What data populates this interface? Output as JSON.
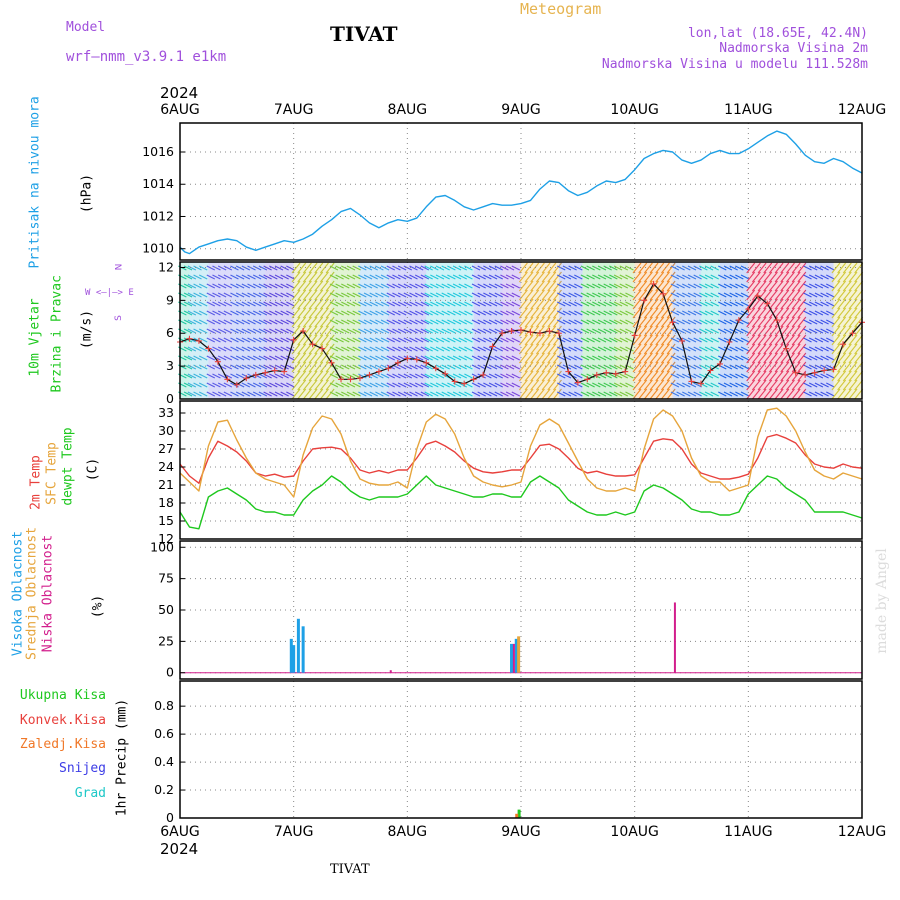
{
  "header": {
    "model_label": "Model",
    "model_name": "wrf—nmm_v3.9.1  e1km",
    "station": "TIVAT",
    "title": "Meteogram",
    "lonlat": "lon,lat (18.65E, 42.4N)",
    "altitude": "Nadmorska Visina 2m",
    "model_altitude": "Nadmorska Visina u modelu 111.528m",
    "year_top": "2024",
    "year_bottom": "2024",
    "footer_station": "TIVAT",
    "watermark": "made by Angel"
  },
  "colors": {
    "pressure": "#1ea0e6",
    "t2m": "#e8403c",
    "sfc": "#e6a53c",
    "dewpt": "#1ec81e",
    "visoka": "#1ea0e6",
    "srednja": "#e6a53c",
    "niska": "#d21e8c",
    "ukupna": "#1ec81e",
    "konvek": "#e8403c",
    "zaledj": "#f07828",
    "snijeg": "#3c3ce6",
    "grad": "#1ec8c8",
    "wind_label": "#1ec81e",
    "compass": "#a050dc",
    "watermark": "#dcdcdc"
  },
  "x_axis": {
    "dates": [
      "6AUG",
      "7AUG",
      "8AUG",
      "9AUG",
      "10AUG",
      "11AUG",
      "12AUG"
    ],
    "hours": [
      0,
      24,
      48,
      72,
      96,
      120,
      144
    ]
  },
  "panel_labels": {
    "pressure": {
      "name": "Pritisak na nivou mora",
      "unit": "(hPa)"
    },
    "wind": {
      "name1": "10m Vjetar",
      "name2": "Brzina i Pravac",
      "unit": "(m/s)"
    },
    "compass": {
      "n": "N",
      "w": "W",
      "e": "E",
      "s": "S",
      "row": "W  <—|—>  E"
    },
    "temp": {
      "t2m": "2m Temp",
      "sfc": "SFC Temp",
      "dewpt": "dewpt Temp",
      "unit": "(C)"
    },
    "cloud": {
      "visoka": "Visoka Oblacnost",
      "srednja": "Srednja Oblacnost",
      "niska": "Niska  Oblacnost",
      "unit": "(%)"
    },
    "precip": {
      "ukupna": "Ukupna  Kisa",
      "konvek": "Konvek.Kisa",
      "zaledj": "Zaledj.Kisa",
      "snijeg": "Snijeg",
      "grad": "Grad",
      "unit": "1hr Precip (mm)"
    }
  },
  "chart_data": [
    {
      "type": "line",
      "panel": "pressure",
      "ylim": [
        1009.3,
        1017.8
      ],
      "yticks": [
        1010,
        1012,
        1014,
        1016
      ],
      "series": [
        {
          "name": "Pritisak na nivou mora",
          "x": [
            0,
            1,
            2,
            4,
            6,
            8,
            10,
            12,
            14,
            16,
            18,
            20,
            22,
            24,
            26,
            28,
            30,
            32,
            34,
            36,
            38,
            40,
            42,
            44,
            46,
            48,
            50,
            52,
            54,
            56,
            58,
            60,
            62,
            64,
            66,
            68,
            70,
            72,
            74,
            76,
            78,
            80,
            82,
            84,
            86,
            88,
            90,
            92,
            94,
            96,
            98,
            100,
            102,
            104,
            106,
            108,
            110,
            112,
            114,
            116,
            118,
            120,
            122,
            124,
            126,
            128,
            130,
            132,
            134,
            136,
            138,
            140,
            142,
            144
          ],
          "values": [
            1010.1,
            1009.8,
            1009.7,
            1010.1,
            1010.3,
            1010.5,
            1010.6,
            1010.5,
            1010.1,
            1009.9,
            1010.1,
            1010.3,
            1010.5,
            1010.4,
            1010.6,
            1010.9,
            1011.4,
            1011.8,
            1012.3,
            1012.5,
            1012.1,
            1011.6,
            1011.3,
            1011.6,
            1011.8,
            1011.7,
            1011.9,
            1012.6,
            1013.2,
            1013.3,
            1013.0,
            1012.6,
            1012.4,
            1012.6,
            1012.8,
            1012.7,
            1012.7,
            1012.8,
            1013.0,
            1013.7,
            1014.2,
            1014.1,
            1013.6,
            1013.3,
            1013.5,
            1013.9,
            1014.2,
            1014.1,
            1014.3,
            1014.9,
            1015.6,
            1015.9,
            1016.1,
            1016.0,
            1015.5,
            1015.3,
            1015.5,
            1015.9,
            1016.1,
            1015.9,
            1015.9,
            1016.2,
            1016.6,
            1017.0,
            1017.3,
            1017.1,
            1016.5,
            1015.8,
            1015.4,
            1015.3,
            1015.6,
            1015.4,
            1015.0,
            1014.7
          ]
        }
      ]
    },
    {
      "type": "line",
      "panel": "wind",
      "ylim": [
        0,
        12.5
      ],
      "yticks": [
        0,
        3,
        6,
        9,
        12
      ],
      "series": [
        {
          "name": "10m Vjetar",
          "x": [
            0,
            2,
            4,
            6,
            8,
            10,
            12,
            14,
            16,
            18,
            20,
            22,
            24,
            26,
            28,
            30,
            32,
            34,
            36,
            38,
            40,
            42,
            44,
            46,
            48,
            50,
            52,
            54,
            56,
            58,
            60,
            62,
            64,
            66,
            68,
            70,
            72,
            74,
            76,
            78,
            80,
            82,
            84,
            86,
            88,
            90,
            92,
            94,
            96,
            98,
            100,
            102,
            104,
            106,
            108,
            110,
            112,
            114,
            116,
            118,
            120,
            122,
            124,
            126,
            128,
            130,
            132,
            134,
            136,
            138,
            140,
            142,
            144
          ],
          "values": [
            5.2,
            5.5,
            5.3,
            4.6,
            3.4,
            1.8,
            1.3,
            1.9,
            2.2,
            2.4,
            2.6,
            2.5,
            5.4,
            6.2,
            5.0,
            4.6,
            3.3,
            1.8,
            1.8,
            1.9,
            2.2,
            2.5,
            2.8,
            3.3,
            3.7,
            3.6,
            3.3,
            2.8,
            2.3,
            1.6,
            1.4,
            1.8,
            2.2,
            4.8,
            6.0,
            6.2,
            6.3,
            6.1,
            6.0,
            6.2,
            6.0,
            2.5,
            1.5,
            1.8,
            2.2,
            2.4,
            2.3,
            2.5,
            5.8,
            9.0,
            10.5,
            9.6,
            7.0,
            5.3,
            1.6,
            1.4,
            2.6,
            3.2,
            5.2,
            7.2,
            8.2,
            9.4,
            8.7,
            7.2,
            4.6,
            2.4,
            2.2,
            2.4,
            2.6,
            2.7,
            5.0,
            6.0,
            7.0
          ]
        }
      ]
    },
    {
      "type": "line",
      "panel": "temperature",
      "ylim": [
        12,
        35
      ],
      "yticks": [
        12,
        15,
        18,
        21,
        24,
        27,
        30,
        33
      ],
      "series": [
        {
          "name": "2m Temp",
          "x": [
            0,
            2,
            4,
            6,
            8,
            10,
            12,
            14,
            16,
            18,
            20,
            22,
            24,
            26,
            28,
            30,
            32,
            34,
            36,
            38,
            40,
            42,
            44,
            46,
            48,
            50,
            52,
            54,
            56,
            58,
            60,
            62,
            64,
            66,
            68,
            70,
            72,
            74,
            76,
            78,
            80,
            82,
            84,
            86,
            88,
            90,
            92,
            94,
            96,
            98,
            100,
            102,
            104,
            106,
            108,
            110,
            112,
            114,
            116,
            118,
            120,
            122,
            124,
            126,
            128,
            130,
            132,
            134,
            136,
            138,
            140,
            142,
            144
          ],
          "values": [
            24.5,
            22.5,
            21.3,
            25.5,
            28.3,
            27.5,
            26.5,
            25.0,
            23.0,
            22.5,
            22.8,
            22.3,
            22.5,
            25.0,
            27.0,
            27.2,
            27.3,
            27.0,
            25.5,
            23.5,
            23.0,
            23.4,
            23.0,
            23.5,
            23.5,
            25.5,
            27.8,
            28.3,
            27.5,
            26.5,
            25.0,
            23.8,
            23.2,
            23.0,
            23.2,
            23.5,
            23.5,
            25.5,
            27.6,
            27.8,
            27.0,
            25.5,
            23.8,
            23.0,
            23.3,
            22.8,
            22.5,
            22.5,
            22.7,
            25.5,
            28.3,
            28.7,
            28.5,
            27.0,
            24.5,
            23.0,
            22.5,
            22.0,
            22.0,
            22.3,
            22.8,
            25.5,
            29.0,
            29.4,
            28.8,
            28.0,
            26.0,
            24.5,
            24.0,
            23.8,
            24.5,
            24.0,
            23.8
          ]
        },
        {
          "name": "SFC Temp",
          "x": [
            0,
            2,
            4,
            6,
            8,
            10,
            12,
            14,
            16,
            18,
            20,
            22,
            24,
            26,
            28,
            30,
            32,
            34,
            36,
            38,
            40,
            42,
            44,
            46,
            48,
            50,
            52,
            54,
            56,
            58,
            60,
            62,
            64,
            66,
            68,
            70,
            72,
            74,
            76,
            78,
            80,
            82,
            84,
            86,
            88,
            90,
            92,
            94,
            96,
            98,
            100,
            102,
            104,
            106,
            108,
            110,
            112,
            114,
            116,
            118,
            120,
            122,
            124,
            126,
            128,
            130,
            132,
            134,
            136,
            138,
            140,
            142,
            144
          ],
          "values": [
            23.0,
            21.5,
            20.0,
            27.5,
            31.5,
            31.8,
            28.5,
            25.5,
            23.0,
            22.0,
            21.5,
            21.0,
            19.0,
            26.0,
            30.5,
            32.5,
            32.0,
            29.5,
            25.0,
            22.0,
            21.3,
            21.0,
            21.0,
            21.5,
            20.5,
            27.0,
            31.5,
            32.8,
            32.0,
            29.5,
            25.5,
            22.5,
            21.5,
            21.0,
            20.7,
            21.0,
            21.5,
            27.5,
            31.0,
            32.0,
            31.0,
            28.0,
            25.0,
            22.0,
            20.5,
            20.0,
            20.0,
            20.5,
            20.0,
            27.0,
            32.0,
            33.5,
            32.5,
            30.0,
            25.5,
            22.5,
            21.5,
            21.5,
            20.0,
            20.5,
            21.0,
            29.0,
            33.5,
            33.8,
            32.5,
            30.0,
            26.5,
            23.5,
            22.5,
            22.0,
            23.0,
            22.5,
            22.0
          ]
        },
        {
          "name": "dewpt Temp",
          "x": [
            0,
            2,
            4,
            6,
            8,
            10,
            12,
            14,
            16,
            18,
            20,
            22,
            24,
            26,
            28,
            30,
            32,
            34,
            36,
            38,
            40,
            42,
            44,
            46,
            48,
            50,
            52,
            54,
            56,
            58,
            60,
            62,
            64,
            66,
            68,
            70,
            72,
            74,
            76,
            78,
            80,
            82,
            84,
            86,
            88,
            90,
            92,
            94,
            96,
            98,
            100,
            102,
            104,
            106,
            108,
            110,
            112,
            114,
            116,
            118,
            120,
            122,
            124,
            126,
            128,
            130,
            132,
            134,
            136,
            138,
            140,
            142,
            144
          ],
          "values": [
            16.5,
            14.0,
            13.7,
            19.0,
            20.0,
            20.5,
            19.5,
            18.5,
            17.0,
            16.5,
            16.5,
            16.0,
            16.0,
            18.5,
            20.0,
            21.0,
            22.5,
            21.5,
            20.0,
            19.0,
            18.5,
            19.0,
            19.0,
            19.0,
            19.5,
            21.0,
            22.5,
            21.0,
            20.5,
            20.0,
            19.5,
            19.0,
            19.0,
            19.5,
            19.5,
            19.0,
            19.0,
            21.5,
            22.5,
            21.5,
            20.5,
            18.5,
            17.5,
            16.5,
            16.0,
            16.0,
            16.5,
            16.0,
            16.5,
            20.0,
            21.0,
            20.5,
            19.5,
            18.5,
            17.0,
            16.5,
            16.5,
            16.0,
            16.0,
            16.5,
            19.5,
            21.0,
            22.5,
            22.0,
            20.5,
            19.5,
            18.5,
            16.5,
            16.5,
            16.5,
            16.5,
            16.0,
            15.5
          ]
        }
      ]
    },
    {
      "type": "bar",
      "panel": "cloud",
      "ylim": [
        -5,
        105
      ],
      "yticks": [
        0,
        25,
        50,
        75,
        100
      ],
      "series": [
        {
          "name": "Visoka Oblacnost",
          "x": [
            23.5,
            24.0,
            25.0,
            26.0,
            70.0,
            71.0
          ],
          "values": [
            27,
            22,
            43,
            37,
            23,
            27
          ]
        },
        {
          "name": "Srednja Oblacnost",
          "x": [
            71.5
          ],
          "values": [
            29
          ]
        },
        {
          "name": "Niska  Oblacnost",
          "x": [
            44.5,
            70.5,
            104.5
          ],
          "values": [
            2,
            23,
            56
          ]
        }
      ]
    },
    {
      "type": "bar",
      "panel": "precip",
      "ylim": [
        0,
        0.98
      ],
      "yticks": [
        0,
        0.2,
        0.4,
        0.6,
        0.8
      ],
      "series": [
        {
          "name": "Ukupna  Kisa",
          "x": [
            71.6
          ],
          "values": [
            0.06
          ]
        },
        {
          "name": "Zaledj.Kisa",
          "x": [
            71.1
          ],
          "values": [
            0.03
          ]
        }
      ]
    }
  ]
}
